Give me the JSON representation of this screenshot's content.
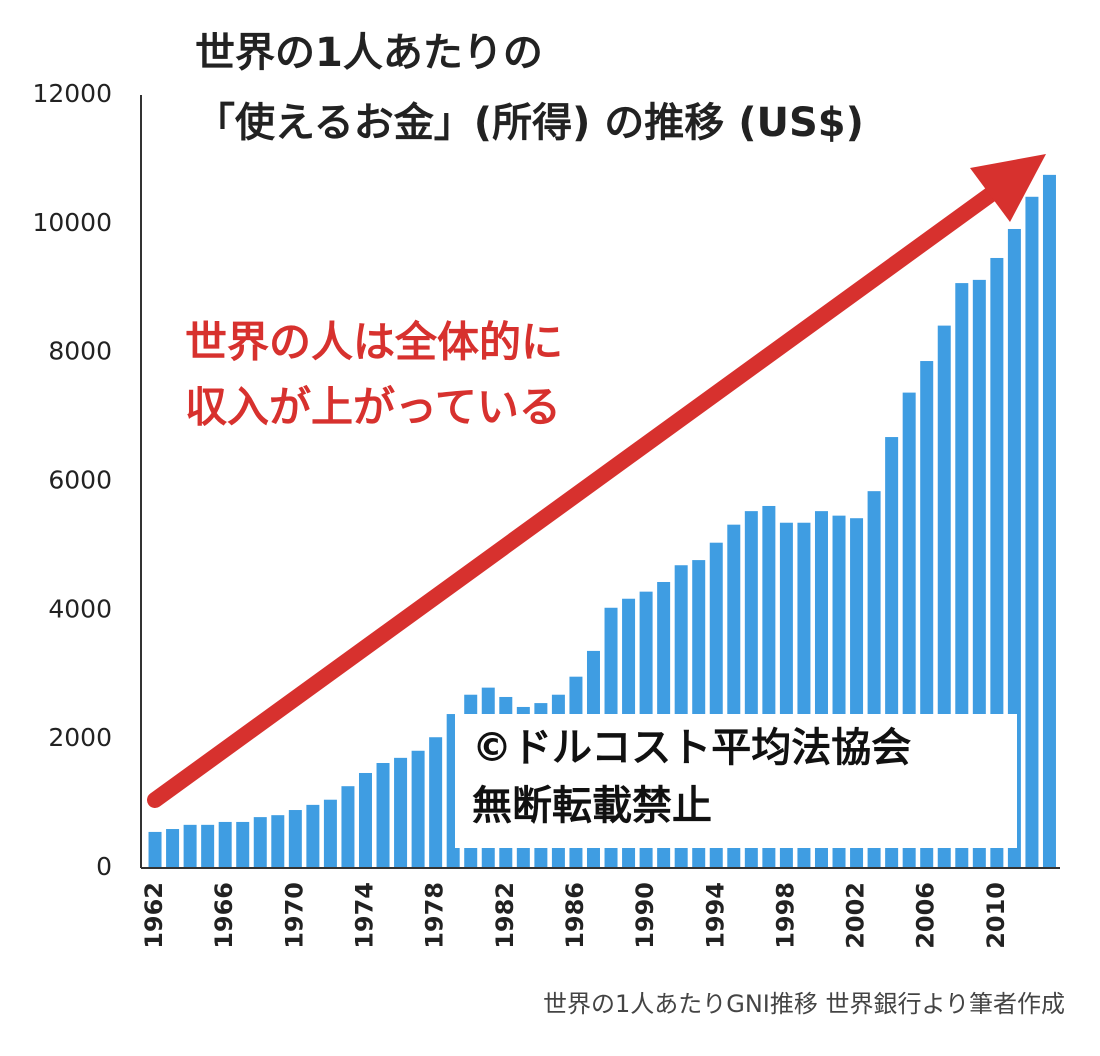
{
  "chart_data": {
    "type": "bar",
    "title": [
      "世界の1人あたりの",
      "「使えるお金」(所得) の推移 (US$)"
    ],
    "annotation": [
      "世界の人は全体的に",
      "収入が上がっている"
    ],
    "watermark": [
      "©ドルコスト平均法協会",
      "無断転載禁止"
    ],
    "source": "世界の1人あたりGNI推移 世界銀行より筆者作成",
    "x": [
      1962,
      1963,
      1964,
      1965,
      1966,
      1967,
      1968,
      1969,
      1970,
      1971,
      1972,
      1973,
      1974,
      1975,
      1976,
      1977,
      1978,
      1979,
      1980,
      1981,
      1982,
      1983,
      1984,
      1985,
      1986,
      1987,
      1988,
      1989,
      1990,
      1991,
      1992,
      1993,
      1994,
      1995,
      1996,
      1997,
      1998,
      1999,
      2000,
      2001,
      2002,
      2003,
      2004,
      2005,
      2006,
      2007,
      2008,
      2009,
      2010,
      2011,
      2012,
      2013
    ],
    "values": [
      560,
      605,
      670,
      670,
      715,
      715,
      790,
      820,
      900,
      980,
      1060,
      1270,
      1475,
      1630,
      1710,
      1820,
      2030,
      2390,
      2690,
      2800,
      2655,
      2500,
      2560,
      2690,
      2970,
      3370,
      4040,
      4180,
      4290,
      4440,
      4700,
      4780,
      5050,
      5330,
      5540,
      5620,
      5360,
      5360,
      5540,
      5470,
      5430,
      5850,
      6690,
      7380,
      7870,
      8420,
      9080,
      9130,
      9470,
      9920,
      10420,
      10760
    ],
    "color": "#3f9de2",
    "arrow_color": "#d7312e",
    "xlim": [
      1961.2,
      2013.6
    ],
    "xticks": [
      1962,
      1966,
      1970,
      1974,
      1978,
      1982,
      1986,
      1990,
      1994,
      1998,
      2002,
      2006,
      2010
    ],
    "ylim": [
      0,
      12000
    ],
    "yticks": [
      0,
      2000,
      4000,
      6000,
      8000,
      10000,
      12000
    ],
    "grid": false
  }
}
